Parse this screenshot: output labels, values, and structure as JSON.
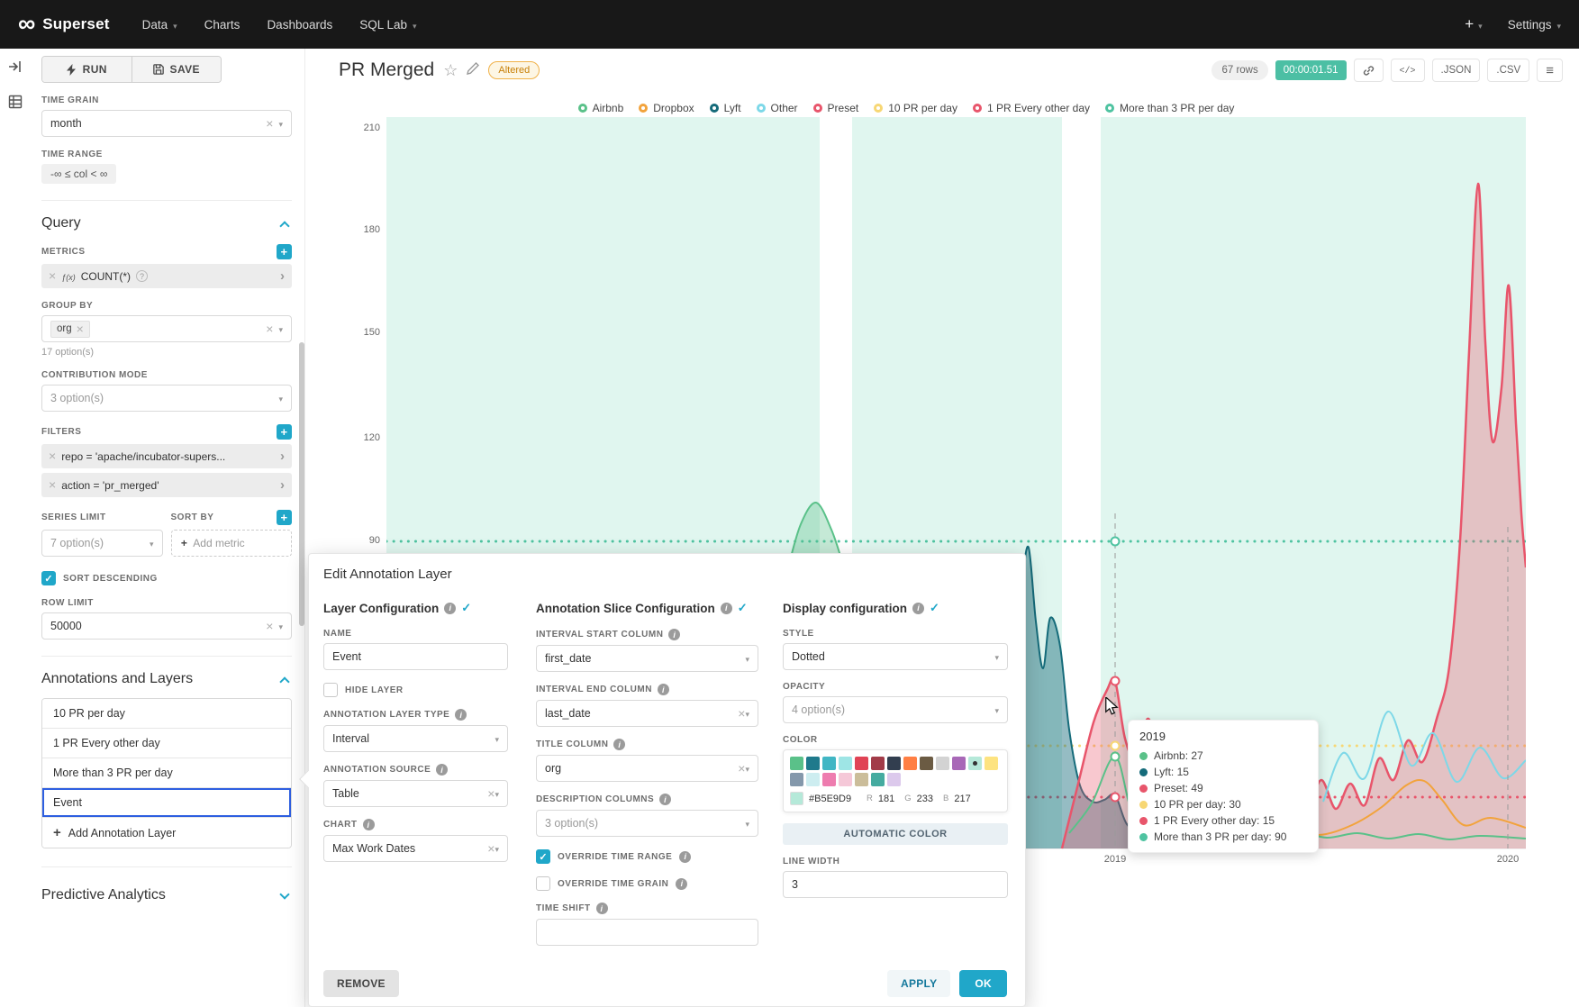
{
  "theme": {
    "accent": "#20A7C9",
    "navbar_bg": "#181818",
    "annotation_band": "#B5E9D9",
    "selected_layer_border": "#2E5FE0",
    "timing_badge_bg": "#4CBFA4"
  },
  "navbar": {
    "brand": "Superset",
    "items": [
      {
        "label": "Data",
        "caret": true
      },
      {
        "label": "Charts",
        "caret": false
      },
      {
        "label": "Dashboards",
        "caret": false
      },
      {
        "label": "SQL Lab",
        "caret": true
      }
    ],
    "plus_label": "+",
    "settings_label": "Settings"
  },
  "panel": {
    "run": "RUN",
    "save": "SAVE",
    "time_grain": {
      "label": "TIME GRAIN",
      "value": "month"
    },
    "time_range": {
      "label": "TIME RANGE",
      "value": "-∞ ≤ col < ∞"
    },
    "query": {
      "title": "Query",
      "metrics_label": "METRICS",
      "metric_chip": "COUNT(*)",
      "group_by_label": "GROUP BY",
      "group_by_tag": "org",
      "group_by_hint": "17 option(s)",
      "contribution_label": "CONTRIBUTION MODE",
      "contribution_value": "3 option(s)",
      "filters_label": "FILTERS",
      "filter_1": "repo = 'apache/incubator-supers...",
      "filter_2": "action = 'pr_merged'",
      "series_limit_label": "SERIES LIMIT",
      "series_limit_value": "7 option(s)",
      "sort_by_label": "SORT BY",
      "sort_by_placeholder": "Add metric",
      "sort_descending_label": "SORT DESCENDING",
      "row_limit_label": "ROW LIMIT",
      "row_limit_value": "50000"
    },
    "annotations": {
      "title": "Annotations and Layers",
      "layers": [
        "10 PR per day",
        "1 PR Every other day",
        "More than 3 PR per day",
        "Event"
      ],
      "selected_layer": "Event",
      "add_label": "Add Annotation Layer"
    },
    "predictive_title": "Predictive Analytics"
  },
  "header": {
    "title": "PR Merged",
    "altered_badge": "Altered",
    "row_count": "67 rows",
    "timing": "00:00:01.51",
    "json_label": ".JSON",
    "csv_label": ".CSV"
  },
  "chart_data": {
    "type": "line",
    "title": "PR Merged",
    "x_ticks": [
      "2019",
      "2020"
    ],
    "y_ticks": [
      210,
      180,
      150,
      120,
      90
    ],
    "ylim": [
      0,
      215
    ],
    "grid": false,
    "legend_position": "top",
    "series_legend": [
      {
        "label": "Airbnb",
        "color": "#5AC189"
      },
      {
        "label": "Dropbox",
        "color": "#F2A33C"
      },
      {
        "label": "Lyft",
        "color": "#156B7A"
      },
      {
        "label": "Other",
        "color": "#7DD8E8"
      },
      {
        "label": "Preset",
        "color": "#E8556B"
      },
      {
        "label": "10 PR per day",
        "color": "#F7D774"
      },
      {
        "label": "1 PR Every other day",
        "color": "#E8556B"
      },
      {
        "label": "More than 3 PR per day",
        "color": "#4FC3A1"
      }
    ],
    "formula_annotations": [
      {
        "name": "10 PR per day",
        "value": 30,
        "style": "dotted"
      },
      {
        "name": "1 PR Every other day",
        "value": 15,
        "style": "dotted"
      },
      {
        "name": "More than 3 PR per day",
        "value": 90,
        "style": "dotted"
      }
    ],
    "interval_annotation_bands": 3,
    "hover_point": {
      "x": "2019",
      "values": {
        "Airbnb": 27,
        "Lyft": 15,
        "Preset": 49,
        "10 PR per day": 30,
        "1 PR Every other day": 15,
        "More than 3 PR per day": 90
      }
    }
  },
  "tooltip": {
    "title": "2019",
    "rows": [
      {
        "label": "Airbnb",
        "value": "27",
        "color": "#5AC189"
      },
      {
        "label": "Lyft",
        "value": "15",
        "color": "#156B7A"
      },
      {
        "label": "Preset",
        "value": "49",
        "color": "#E8556B"
      },
      {
        "label": "10 PR per day",
        "value": "30",
        "color": "#F7D774"
      },
      {
        "label": "1 PR Every other day",
        "value": "15",
        "color": "#E8556B"
      },
      {
        "label": "More than 3 PR per day",
        "value": "90",
        "color": "#4FC3A1"
      }
    ]
  },
  "modal": {
    "title": "Edit Annotation Layer",
    "layer_config": {
      "title": "Layer Configuration",
      "name_label": "NAME",
      "name_value": "Event",
      "hide_layer_label": "HIDE LAYER",
      "type_label": "ANNOTATION LAYER TYPE",
      "type_value": "Interval",
      "source_label": "ANNOTATION SOURCE",
      "source_value": "Table",
      "chart_label": "CHART",
      "chart_value": "Max Work Dates"
    },
    "slice_config": {
      "title": "Annotation Slice Configuration",
      "interval_start_label": "INTERVAL START COLUMN",
      "interval_start_value": "first_date",
      "interval_end_label": "INTERVAL END COLUMN",
      "interval_end_value": "last_date",
      "title_column_label": "TITLE COLUMN",
      "title_column_value": "org",
      "description_columns_label": "DESCRIPTION COLUMNS",
      "description_columns_value": "3 option(s)",
      "override_time_range_label": "OVERRIDE TIME RANGE",
      "override_time_grain_label": "OVERRIDE TIME GRAIN",
      "time_shift_label": "TIME SHIFT",
      "time_shift_value": ""
    },
    "display_config": {
      "title": "Display configuration",
      "style_label": "STYLE",
      "style_value": "Dotted",
      "opacity_label": "OPACITY",
      "opacity_value": "4 option(s)",
      "color_label": "COLOR",
      "palette_row1": [
        "#5AC189",
        "#1F7A8C",
        "#41B6C4",
        "#9EE5E5",
        "#E04355",
        "#A23B48",
        "#323E4F",
        "#FF7F44",
        "#6B5B43",
        "#D3D3D3",
        "#A868B7",
        "#B5E9D9",
        "#FDE380"
      ],
      "palette_row2": [
        "#8498AB",
        "#CDEDF0",
        "#EE7CAF",
        "#F5C8D8",
        "#CBBD9A",
        "#45ABA0",
        "#DCC9EC"
      ],
      "selected_color": "#B5E9D9",
      "hex_value": "#B5E9D9",
      "r_label": "R",
      "r_value": "181",
      "g_label": "G",
      "g_value": "233",
      "b_label": "B",
      "b_value": "217",
      "auto_color_label": "AUTOMATIC COLOR",
      "line_width_label": "LINE WIDTH",
      "line_width_value": "3"
    },
    "remove_label": "REMOVE",
    "apply_label": "APPLY",
    "ok_label": "OK"
  }
}
